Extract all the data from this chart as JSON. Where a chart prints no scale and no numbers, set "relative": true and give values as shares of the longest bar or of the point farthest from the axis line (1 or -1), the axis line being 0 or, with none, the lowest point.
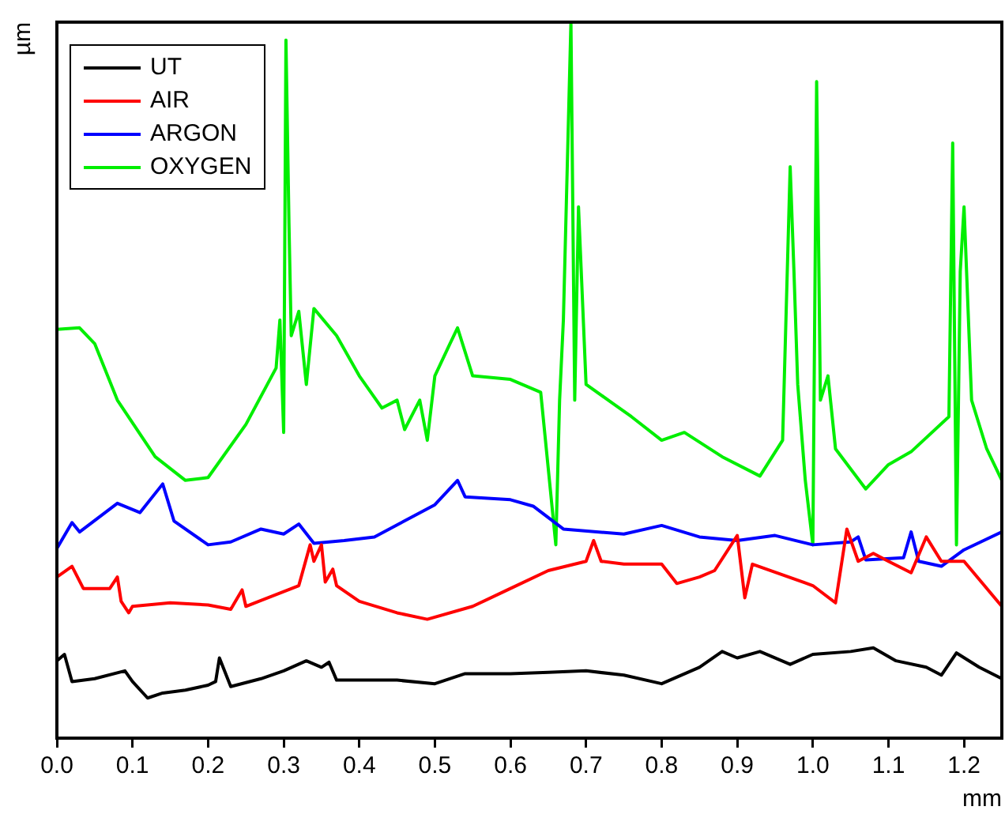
{
  "chart_data": {
    "type": "line",
    "relative": true,
    "xlabel": "mm",
    "ylabel": "µm",
    "xlim": [
      0,
      1.25
    ],
    "xticks": [
      {
        "value": 0,
        "label": "0.0"
      },
      {
        "value": 0.1,
        "label": "0.1"
      },
      {
        "value": 0.2,
        "label": "0.2"
      },
      {
        "value": 0.3,
        "label": "0.3"
      },
      {
        "value": 0.4,
        "label": "0.4"
      },
      {
        "value": 0.5,
        "label": "0.5"
      },
      {
        "value": 0.6,
        "label": "0.6"
      },
      {
        "value": 0.7,
        "label": "0.7"
      },
      {
        "value": 0.8,
        "label": "0.8"
      },
      {
        "value": 0.9,
        "label": "0.9"
      },
      {
        "value": 1,
        "label": "1.0"
      },
      {
        "value": 1.1,
        "label": "1.1"
      },
      {
        "value": 1.2,
        "label": "1.2"
      }
    ],
    "legend": "top left",
    "grid": false,
    "marker": "none",
    "line_style": "solid",
    "series": [
      {
        "name": "UT",
        "color": "#000000",
        "x": [
          0,
          0.01,
          0.02,
          0.05,
          0.09,
          0.1,
          0.12,
          0.14,
          0.17,
          0.2,
          0.21,
          0.215,
          0.23,
          0.27,
          0.3,
          0.33,
          0.35,
          0.36,
          0.37,
          0.45,
          0.5,
          0.54,
          0.6,
          0.65,
          0.7,
          0.75,
          0.8,
          0.85,
          0.88,
          0.9,
          0.93,
          0.97,
          1,
          1.05,
          1.08,
          1.11,
          1.15,
          1.17,
          1.19,
          1.22,
          1.25
        ],
        "values": [
          0.108,
          0.117,
          0.079,
          0.083,
          0.094,
          0.079,
          0.056,
          0.063,
          0.067,
          0.074,
          0.079,
          0.112,
          0.072,
          0.083,
          0.094,
          0.108,
          0.099,
          0.106,
          0.081,
          0.081,
          0.076,
          0.09,
          0.09,
          0.092,
          0.094,
          0.088,
          0.076,
          0.099,
          0.121,
          0.112,
          0.121,
          0.103,
          0.117,
          0.121,
          0.126,
          0.108,
          0.099,
          0.088,
          0.119,
          0.099,
          0.083
        ]
      },
      {
        "name": "AIR",
        "color": "#ff0000",
        "x": [
          0,
          0.02,
          0.035,
          0.07,
          0.08,
          0.085,
          0.095,
          0.1,
          0.15,
          0.2,
          0.23,
          0.245,
          0.25,
          0.32,
          0.335,
          0.34,
          0.35,
          0.355,
          0.365,
          0.37,
          0.4,
          0.45,
          0.49,
          0.55,
          0.6,
          0.65,
          0.7,
          0.71,
          0.72,
          0.75,
          0.8,
          0.82,
          0.85,
          0.87,
          0.9,
          0.91,
          0.92,
          1,
          1.03,
          1.045,
          1.06,
          1.08,
          1.1,
          1.13,
          1.15,
          1.17,
          1.2,
          1.25
        ],
        "values": [
          0.225,
          0.24,
          0.209,
          0.209,
          0.225,
          0.191,
          0.175,
          0.184,
          0.189,
          0.186,
          0.18,
          0.207,
          0.184,
          0.213,
          0.27,
          0.247,
          0.27,
          0.218,
          0.236,
          0.213,
          0.191,
          0.175,
          0.166,
          0.184,
          0.209,
          0.234,
          0.247,
          0.276,
          0.247,
          0.243,
          0.243,
          0.216,
          0.225,
          0.234,
          0.283,
          0.196,
          0.243,
          0.213,
          0.189,
          0.292,
          0.247,
          0.258,
          0.247,
          0.231,
          0.281,
          0.247,
          0.247,
          0.184
        ]
      },
      {
        "name": "ARGON",
        "color": "#0000ff",
        "x": [
          0,
          0.02,
          0.03,
          0.08,
          0.11,
          0.14,
          0.155,
          0.2,
          0.23,
          0.27,
          0.3,
          0.32,
          0.34,
          0.38,
          0.42,
          0.5,
          0.53,
          0.54,
          0.6,
          0.63,
          0.67,
          0.75,
          0.8,
          0.85,
          0.9,
          0.95,
          1,
          1.05,
          1.06,
          1.07,
          1.12,
          1.13,
          1.14,
          1.17,
          1.2,
          1.25
        ],
        "values": [
          0.265,
          0.301,
          0.288,
          0.328,
          0.315,
          0.355,
          0.303,
          0.27,
          0.274,
          0.292,
          0.285,
          0.299,
          0.272,
          0.276,
          0.281,
          0.326,
          0.36,
          0.337,
          0.333,
          0.324,
          0.292,
          0.285,
          0.297,
          0.281,
          0.276,
          0.283,
          0.27,
          0.274,
          0.281,
          0.249,
          0.252,
          0.288,
          0.247,
          0.24,
          0.263,
          0.288
        ]
      },
      {
        "name": "OXYGEN",
        "color": "#00ee00",
        "x": [
          0,
          0.03,
          0.05,
          0.08,
          0.13,
          0.17,
          0.2,
          0.25,
          0.29,
          0.295,
          0.3,
          0.303,
          0.307,
          0.31,
          0.32,
          0.33,
          0.34,
          0.37,
          0.4,
          0.43,
          0.45,
          0.46,
          0.48,
          0.49,
          0.5,
          0.52,
          0.53,
          0.55,
          0.6,
          0.64,
          0.66,
          0.665,
          0.67,
          0.68,
          0.685,
          0.69,
          0.7,
          0.76,
          0.8,
          0.83,
          0.88,
          0.93,
          0.96,
          0.97,
          0.975,
          0.98,
          0.99,
          1,
          1.005,
          1.01,
          1.02,
          1.03,
          1.07,
          1.1,
          1.13,
          1.18,
          1.185,
          1.19,
          1.195,
          1.2,
          1.21,
          1.23,
          1.25
        ],
        "values": [
          0.571,
          0.573,
          0.551,
          0.472,
          0.393,
          0.36,
          0.364,
          0.438,
          0.517,
          0.584,
          0.427,
          0.975,
          0.719,
          0.562,
          0.596,
          0.494,
          0.6,
          0.562,
          0.506,
          0.461,
          0.472,
          0.431,
          0.472,
          0.416,
          0.506,
          0.551,
          0.573,
          0.506,
          0.501,
          0.483,
          0.27,
          0.472,
          0.584,
          1,
          0.472,
          0.742,
          0.494,
          0.449,
          0.416,
          0.427,
          0.393,
          0.366,
          0.416,
          0.798,
          0.652,
          0.494,
          0.36,
          0.27,
          0.917,
          0.472,
          0.506,
          0.404,
          0.348,
          0.382,
          0.4,
          0.449,
          0.831,
          0.27,
          0.652,
          0.742,
          0.472,
          0.404,
          0.36
        ]
      }
    ]
  }
}
